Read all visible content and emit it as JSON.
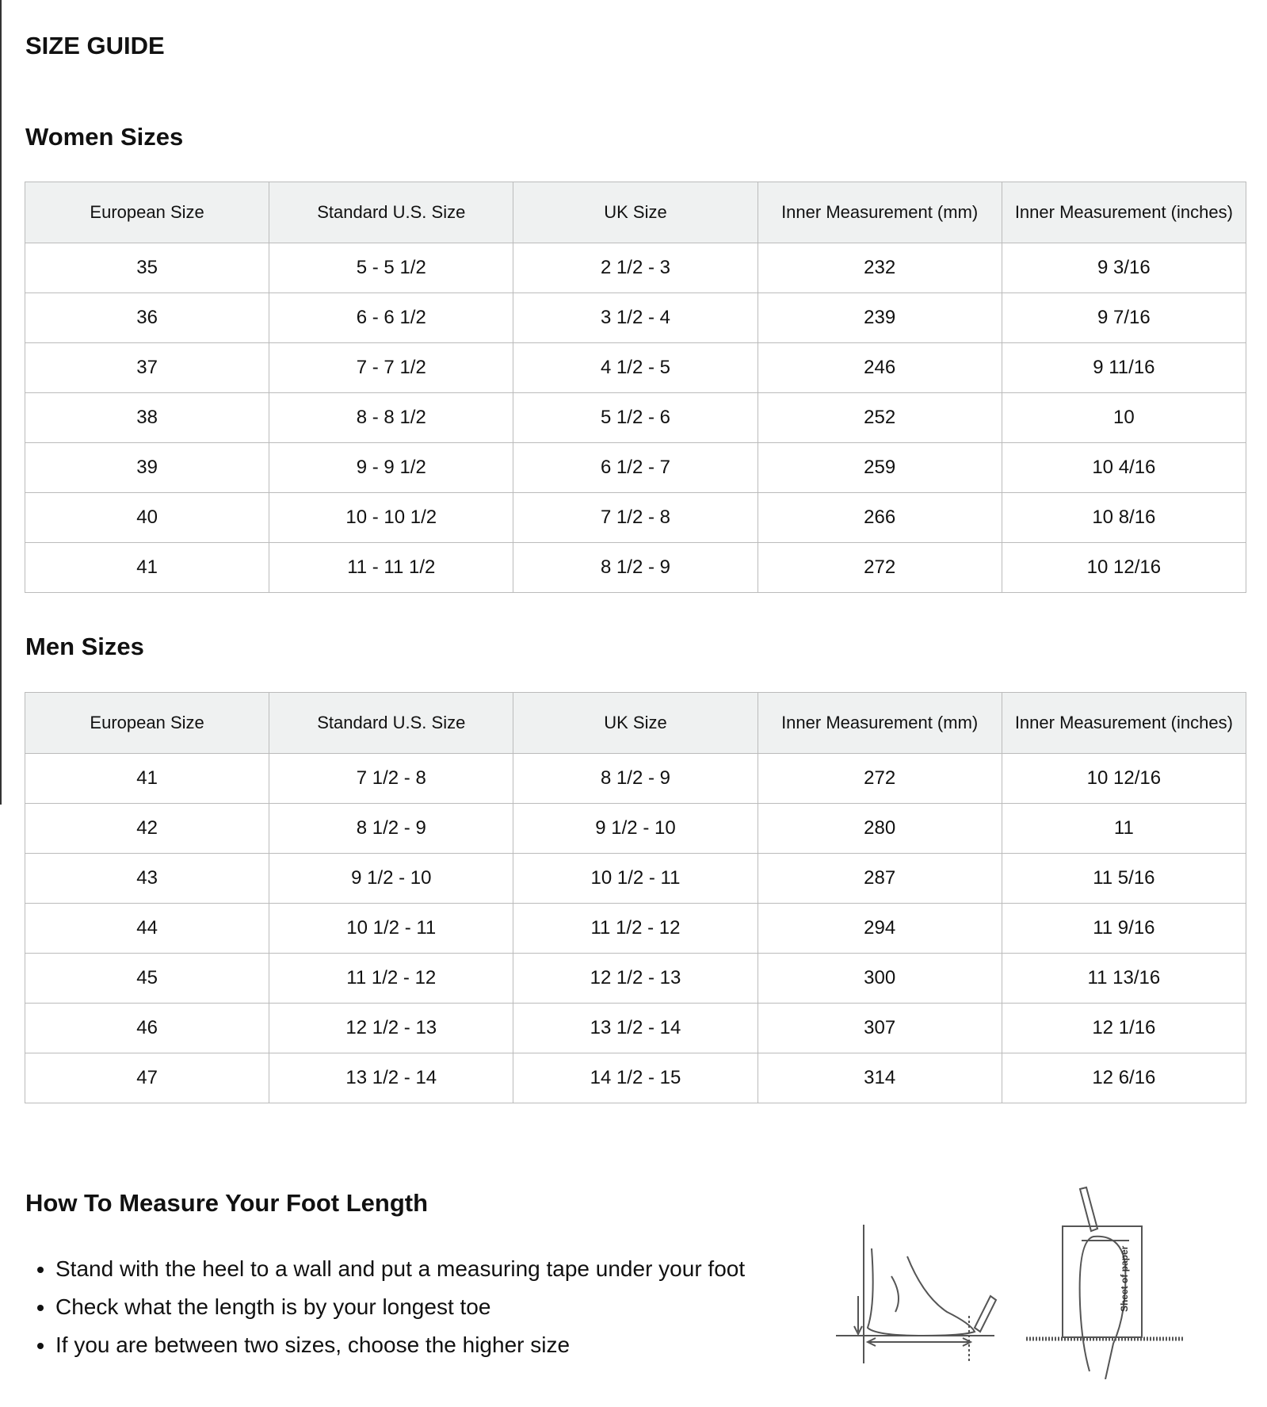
{
  "header": {
    "title": "SIZE GUIDE"
  },
  "tables": [
    {
      "heading": "Women Sizes",
      "columns": [
        "European Size",
        "Standard U.S. Size",
        "UK Size",
        "Inner Measurement (mm)",
        "Inner Measurement (inches)"
      ],
      "rows": [
        [
          "35",
          "5 - 5 1/2",
          "2 1/2 - 3",
          "232",
          "9 3/16"
        ],
        [
          "36",
          "6 - 6 1/2",
          "3 1/2 - 4",
          "239",
          "9 7/16"
        ],
        [
          "37",
          "7 - 7 1/2",
          "4 1/2 - 5",
          "246",
          "9 11/16"
        ],
        [
          "38",
          "8 - 8 1/2",
          "5 1/2 - 6",
          "252",
          "10"
        ],
        [
          "39",
          "9 - 9 1/2",
          "6 1/2 - 7",
          "259",
          "10 4/16"
        ],
        [
          "40",
          "10 - 10 1/2",
          "7 1/2 - 8",
          "266",
          "10 8/16"
        ],
        [
          "41",
          "11 - 11 1/2",
          "8 1/2 - 9",
          "272",
          "10 12/16"
        ]
      ]
    },
    {
      "heading": "Men Sizes",
      "columns": [
        "European Size",
        "Standard U.S. Size",
        "UK Size",
        "Inner Measurement (mm)",
        "Inner Measurement (inches)"
      ],
      "rows": [
        [
          "41",
          "7 1/2 - 8",
          "8 1/2 - 9",
          "272",
          "10 12/16"
        ],
        [
          "42",
          "8 1/2 - 9",
          "9 1/2 - 10",
          "280",
          "11"
        ],
        [
          "43",
          "9 1/2 - 10",
          "10 1/2 - 11",
          "287",
          "11 5/16"
        ],
        [
          "44",
          "10 1/2 - 11",
          "11 1/2 - 12",
          "294",
          "11 9/16"
        ],
        [
          "45",
          "11 1/2 - 12",
          "12 1/2 - 13",
          "300",
          "11 13/16"
        ],
        [
          "46",
          "12 1/2 - 13",
          "13 1/2 - 14",
          "307",
          "12 1/16"
        ],
        [
          "47",
          "13 1/2 - 14",
          "14 1/2 - 15",
          "314",
          "12 6/16"
        ]
      ]
    }
  ],
  "measure": {
    "heading": "How To Measure Your Foot Length",
    "steps": [
      "Stand with the heel to a wall and put a measuring tape under your foot",
      "Check what the length is by your longest toe",
      "If you are between two sizes, choose the higher size"
    ],
    "illustration_label": "Sheet of paper"
  }
}
